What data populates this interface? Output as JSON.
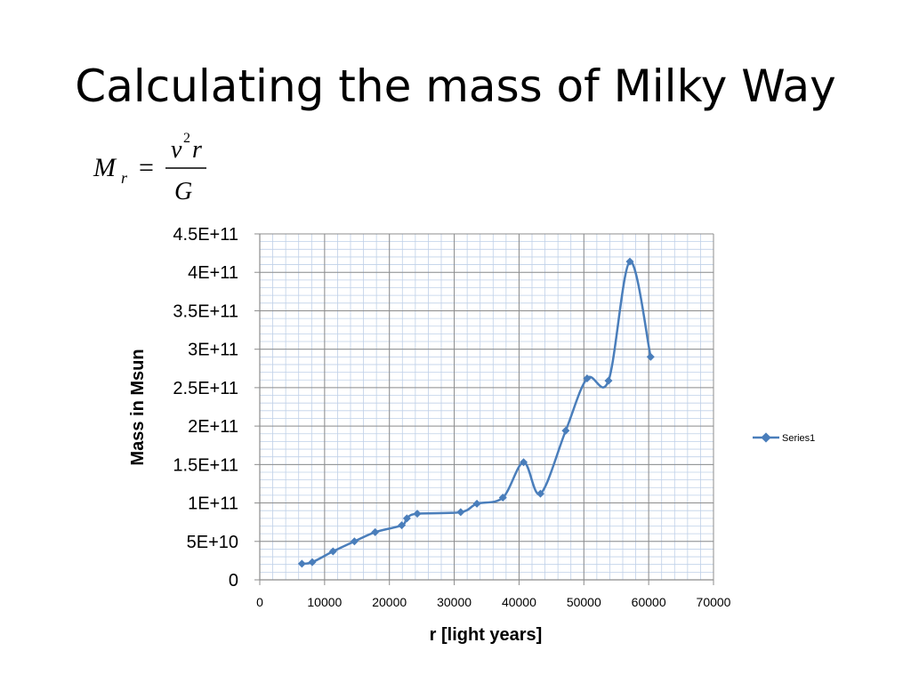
{
  "slide": {
    "title": "Calculating the mass of Milky Way",
    "formula": {
      "lhs_symbol": "M",
      "lhs_subscript": "r",
      "equals": "=",
      "numerator_v": "v",
      "numerator_exp": "2",
      "numerator_r": "r",
      "denominator": "G"
    }
  },
  "colors": {
    "series_line": "#4a7ebb",
    "series_marker": "#4a7ebb",
    "major_grid": "#8c8c8c",
    "minor_grid": "#bfd0e8",
    "axis": "#8c8c8c",
    "text": "#000000"
  },
  "chart_data": {
    "type": "scatter",
    "title": "",
    "xlabel": "r [light years]",
    "ylabel": "Mass in Msun",
    "xlim": [
      0,
      70000
    ],
    "ylim": [
      0,
      450000000000
    ],
    "x_ticks": [
      0,
      10000,
      20000,
      30000,
      40000,
      50000,
      60000,
      70000
    ],
    "x_tick_labels": [
      "0",
      "10000",
      "20000",
      "30000",
      "40000",
      "50000",
      "60000",
      "70000"
    ],
    "y_ticks": [
      0,
      50000000000,
      100000000000,
      150000000000,
      200000000000,
      250000000000,
      300000000000,
      350000000000,
      400000000000,
      450000000000
    ],
    "y_tick_labels": [
      "0",
      "5E+10",
      "1E+11",
      "1.5E+11",
      "2E+11",
      "2.5E+11",
      "3E+11",
      "3.5E+11",
      "4E+11",
      "4.5E+11"
    ],
    "grid": true,
    "smooth_line": true,
    "legend_position": "right",
    "series": [
      {
        "name": "Series1",
        "marker": "diamond",
        "x": [
          6500,
          8100,
          11300,
          14600,
          17800,
          21900,
          22700,
          24300,
          31000,
          33500,
          37500,
          40700,
          43300,
          47200,
          50500,
          53800,
          57100,
          60300
        ],
        "y": [
          21000000000,
          23000000000,
          37000000000,
          50000000000,
          62000000000,
          71000000000,
          80000000000,
          86000000000,
          88000000000,
          99000000000,
          107000000000,
          153000000000,
          112000000000,
          194000000000,
          262000000000,
          259000000000,
          414000000000,
          290000000000
        ]
      }
    ]
  }
}
